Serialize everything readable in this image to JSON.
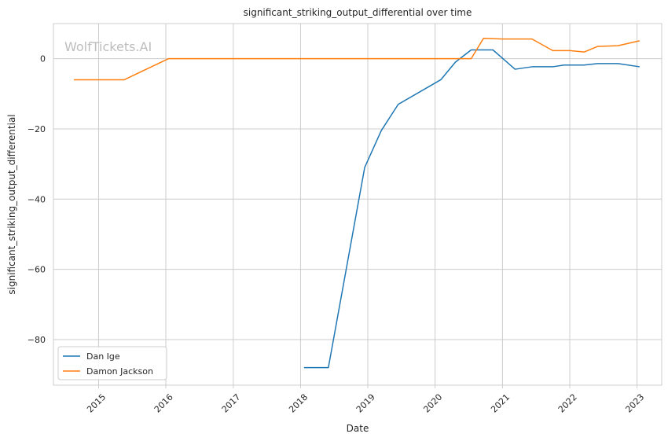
{
  "chart_data": {
    "type": "line",
    "title": "significant_striking_output_differential over time",
    "xlabel": "Date",
    "ylabel": "significant_striking_output_differential",
    "watermark": "WolfTickets.AI",
    "xlim": [
      "2014-05-01",
      "2023-05-15"
    ],
    "ylim": [
      -93,
      10
    ],
    "x_ticks": [
      "2015-01-01",
      "2016-01-01",
      "2017-01-01",
      "2018-01-01",
      "2019-01-01",
      "2020-01-01",
      "2021-01-01",
      "2022-01-01",
      "2023-01-01"
    ],
    "x_tick_labels": [
      "2015",
      "2016",
      "2017",
      "2018",
      "2019",
      "2020",
      "2021",
      "2022",
      "2023"
    ],
    "y_ticks": [
      0,
      -20,
      -40,
      -60,
      -80
    ],
    "y_tick_labels": [
      "0",
      "−20",
      "−40",
      "−60",
      "−80"
    ],
    "grid": true,
    "legend_position": "lower-left",
    "series": [
      {
        "name": "Dan Ige",
        "color": "#1f77b4",
        "points": [
          [
            "2018-01-20",
            -88
          ],
          [
            "2018-06-01",
            -88
          ],
          [
            "2018-12-15",
            -31
          ],
          [
            "2019-03-15",
            -20.5
          ],
          [
            "2019-06-15",
            -13
          ],
          [
            "2020-02-01",
            -6
          ],
          [
            "2020-04-20",
            -1
          ],
          [
            "2020-07-15",
            2.5
          ],
          [
            "2020-11-10",
            2.5
          ],
          [
            "2021-03-10",
            -3
          ],
          [
            "2021-06-10",
            -2.3
          ],
          [
            "2021-10-01",
            -2.3
          ],
          [
            "2021-12-01",
            -1.8
          ],
          [
            "2022-03-20",
            -1.8
          ],
          [
            "2022-06-01",
            -1.4
          ],
          [
            "2022-09-20",
            -1.4
          ],
          [
            "2023-01-15",
            -2.3
          ]
        ]
      },
      {
        "name": "Damon Jackson",
        "color": "#ff7f0e",
        "points": [
          [
            "2014-08-20",
            -6
          ],
          [
            "2015-05-20",
            -6
          ],
          [
            "2016-01-15",
            0
          ],
          [
            "2020-07-15",
            0
          ],
          [
            "2020-09-20",
            5.8
          ],
          [
            "2021-01-01",
            5.6
          ],
          [
            "2021-06-10",
            5.6
          ],
          [
            "2021-10-01",
            2.3
          ],
          [
            "2022-01-01",
            2.3
          ],
          [
            "2022-03-20",
            1.9
          ],
          [
            "2022-06-01",
            3.5
          ],
          [
            "2022-09-20",
            3.7
          ],
          [
            "2023-01-15",
            5.1
          ]
        ]
      }
    ]
  }
}
